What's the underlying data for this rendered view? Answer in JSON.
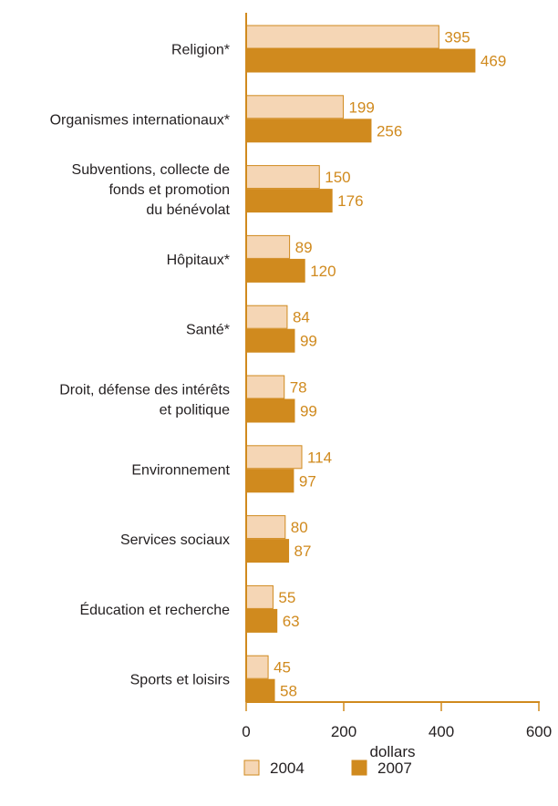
{
  "chart_data": {
    "type": "bar",
    "orientation": "horizontal",
    "categories": [
      [
        "Religion*"
      ],
      [
        "Organismes internationaux*"
      ],
      [
        "Subventions, collecte de",
        "fonds et promotion",
        "du bénévolat"
      ],
      [
        "Hôpitaux*"
      ],
      [
        "Santé*"
      ],
      [
        "Droit, défense des intérêts",
        "et politique"
      ],
      [
        "Environnement"
      ],
      [
        "Services sociaux"
      ],
      [
        "Éducation et recherche"
      ],
      [
        "Sports et loisirs"
      ]
    ],
    "series": [
      {
        "name": "2004",
        "values": [
          395,
          199,
          150,
          89,
          84,
          78,
          114,
          80,
          55,
          45
        ],
        "color": "#f5d6b5",
        "stroke": "#d08a1e"
      },
      {
        "name": "2007",
        "values": [
          469,
          256,
          176,
          120,
          99,
          99,
          97,
          87,
          63,
          58
        ],
        "color": "#d08a1e",
        "stroke": "#d08a1e"
      }
    ],
    "xlabel": "dollars",
    "xlim": [
      0,
      600
    ],
    "xticks": [
      0,
      200,
      400,
      600
    ],
    "axis_color": "#d08a1e",
    "label_color": "#d08a1e",
    "legend_position": "bottom",
    "grid": false
  }
}
